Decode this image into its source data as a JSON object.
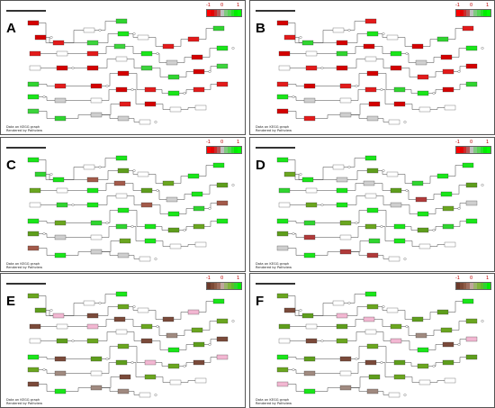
{
  "panels": [
    {
      "letter": "A",
      "scheme": "red-green",
      "ticks": [
        "-1",
        "0",
        "1"
      ],
      "colors": [
        "#d40000",
        "#d40000",
        "#e31a1a",
        "#cfcfcf",
        "#2fd52f",
        "#19e619",
        "#3cd43c",
        "#e31a1a"
      ]
    },
    {
      "letter": "B",
      "scheme": "red-green",
      "ticks": [
        "-1",
        "0",
        "1"
      ],
      "colors": [
        "#d40000",
        "#e31a1a",
        "#d40000",
        "#cfcfcf",
        "#e31a1a",
        "#19e619",
        "#d40000",
        "#2fd52f"
      ]
    },
    {
      "letter": "C",
      "scheme": "red-green",
      "ticks": [
        "-1",
        "0",
        "1"
      ],
      "colors": [
        "#19e619",
        "#2fd52f",
        "#6aa61f",
        "#cfcfcf",
        "#19e619",
        "#5e9e1c",
        "#a35a4a",
        "#19e619"
      ]
    },
    {
      "letter": "D",
      "scheme": "red-green",
      "ticks": [
        "-1",
        "0",
        "1"
      ],
      "colors": [
        "#19e619",
        "#6aa61f",
        "#2fd52f",
        "#b03a3a",
        "#19e619",
        "#5e9e1c",
        "#cfcfcf",
        "#19e619"
      ]
    },
    {
      "letter": "E",
      "scheme": "brown-green",
      "ticks": [
        "-1",
        "0",
        "1"
      ],
      "colors": [
        "#6aa61f",
        "#5e9e1c",
        "#7a4a3a",
        "#a08a80",
        "#19e619",
        "#6aa61f",
        "#7a4a3a",
        "#f2b7d2"
      ]
    },
    {
      "letter": "F",
      "scheme": "brown-green",
      "ticks": [
        "-1",
        "0",
        "1"
      ],
      "colors": [
        "#6aa61f",
        "#7a4a3a",
        "#5e9e1c",
        "#a08a80",
        "#19e619",
        "#6aa61f",
        "#f2b7d2",
        "#5e9e1c"
      ]
    }
  ],
  "legend_colors": {
    "red-green": [
      "#ff0000",
      "#e60000",
      "#cc2a2a",
      "#b35c5c",
      "#bfbfbf",
      "#7fc97f",
      "#55d455",
      "#2adf2a",
      "#00ee00",
      "#00ff00"
    ],
    "brown-green": [
      "#6b3a2a",
      "#7d4a36",
      "#8e5c46",
      "#a07060",
      "#bfa79c",
      "#9bb36a",
      "#7fb53b",
      "#5bbf2a",
      "#2fd52f",
      "#00ee00"
    ]
  },
  "notes": {
    "line1": "Data on KEGG graph",
    "line2": "Rendered by Pathview"
  }
}
